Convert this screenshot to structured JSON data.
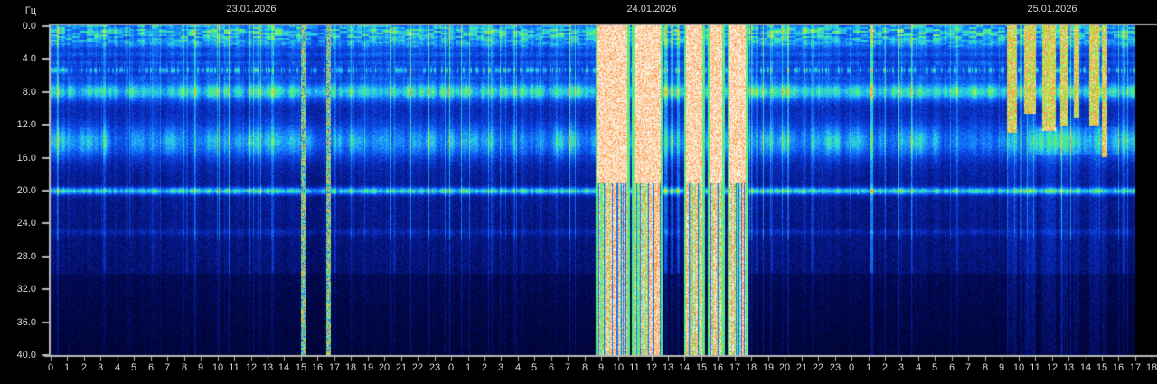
{
  "y_axis": {
    "unit": "Гц",
    "tick_labels": [
      "0.0",
      "4.0",
      "8.0",
      "12.0",
      "16.0",
      "20.0",
      "24.0",
      "28.0",
      "32.0",
      "36.0",
      "40.0"
    ]
  },
  "x_axis": {
    "hour_labels": [
      "0",
      "1",
      "2",
      "3",
      "4",
      "5",
      "6",
      "7",
      "8",
      "9",
      "10",
      "11",
      "12",
      "13",
      "14",
      "15",
      "16",
      "17",
      "18",
      "19",
      "20",
      "21",
      "22",
      "23",
      "0",
      "1",
      "2",
      "3",
      "4",
      "5",
      "6",
      "7",
      "8",
      "9",
      "10",
      "11",
      "12",
      "13",
      "14",
      "15",
      "16",
      "17",
      "18",
      "19",
      "20",
      "21",
      "22",
      "23",
      "0",
      "1",
      "2",
      "3",
      "4",
      "5",
      "6",
      "7",
      "8",
      "9",
      "10",
      "11",
      "12",
      "13",
      "14",
      "15",
      "16",
      "17",
      "18"
    ]
  },
  "dates": [
    "23.01.2026",
    "24.01.2026",
    "25.01.2026"
  ],
  "chart_data": {
    "type": "heatmap",
    "subtype": "ELF spectrogram (Schumann resonances)",
    "ylabel": "Гц",
    "ylim": [
      0,
      40
    ],
    "ytick_step": 4,
    "days": [
      {
        "date": "23.01.2026",
        "first_hour": 0,
        "last_hour": 23
      },
      {
        "date": "24.01.2026",
        "first_hour": 0,
        "last_hour": 23
      },
      {
        "date": "25.01.2026",
        "first_hour": 0,
        "last_hour": 17
      }
    ],
    "grid": false,
    "legend": false,
    "background": "intensity decreases from 0 Hz toward 40 Hz, step darker below 30 Hz",
    "bands": [
      {
        "freq": 0.7,
        "sigma": 1.0,
        "amp": 0.22,
        "style": "streaky",
        "note": "low-frequency dashed activity"
      },
      {
        "freq": 2.1,
        "sigma": 0.35,
        "amp": 0.09,
        "style": "faint"
      },
      {
        "freq": 3.4,
        "sigma": 0.22,
        "amp": 0.08,
        "style": "faint"
      },
      {
        "freq": 4.4,
        "sigma": 0.22,
        "amp": 0.09,
        "style": "faint"
      },
      {
        "freq": 5.3,
        "sigma": 0.28,
        "amp": 0.2,
        "style": "dotted",
        "note": "yellow-green dotted line"
      },
      {
        "freq": 6.2,
        "sigma": 0.22,
        "amp": 0.08,
        "style": "faint"
      },
      {
        "freq": 7.9,
        "sigma": 0.75,
        "amp": 0.3,
        "style": "strong",
        "note": "Schumann fundamental, green"
      },
      {
        "freq": 14.0,
        "sigma": 1.4,
        "amp": 0.25,
        "style": "broad",
        "note": "second mode, cyan"
      },
      {
        "freq": 20.0,
        "sigma": 0.3,
        "amp": 0.36,
        "style": "line",
        "note": "thin bright continuous line"
      },
      {
        "freq": 25.0,
        "sigma": 0.28,
        "amp": 0.07,
        "style": "faint-line"
      }
    ],
    "events": [
      {
        "date": "23.01.2026",
        "start": 15.0,
        "end": 15.25,
        "kind": "speckle-streak"
      },
      {
        "date": "23.01.2026",
        "start": 16.5,
        "end": 16.75,
        "kind": "speckle-streak"
      },
      {
        "date": "24.01.2026",
        "start": 8.7,
        "end": 10.6,
        "kind": "whiteout"
      },
      {
        "date": "24.01.2026",
        "start": 10.9,
        "end": 12.6,
        "kind": "whiteout"
      },
      {
        "date": "24.01.2026",
        "start": 14.0,
        "end": 15.1,
        "kind": "whiteout"
      },
      {
        "date": "24.01.2026",
        "start": 15.4,
        "end": 16.3,
        "kind": "whiteout"
      },
      {
        "date": "24.01.2026",
        "start": 16.6,
        "end": 17.7,
        "kind": "whiteout"
      },
      {
        "date": "25.01.2026",
        "start": 9.3,
        "end": 9.9,
        "kind": "upper-burst"
      },
      {
        "date": "25.01.2026",
        "start": 10.3,
        "end": 11.0,
        "kind": "upper-burst"
      },
      {
        "date": "25.01.2026",
        "start": 11.4,
        "end": 12.2,
        "kind": "upper-burst"
      },
      {
        "date": "25.01.2026",
        "start": 12.5,
        "end": 12.9,
        "kind": "upper-burst"
      },
      {
        "date": "25.01.2026",
        "start": 13.3,
        "end": 13.6,
        "kind": "upper-burst"
      },
      {
        "date": "25.01.2026",
        "start": 14.2,
        "end": 14.8,
        "kind": "upper-burst"
      },
      {
        "date": "25.01.2026",
        "start": 15.0,
        "end": 15.3,
        "kind": "upper-burst"
      }
    ],
    "minor_streaks": [
      {
        "date": "23.01.2026",
        "hour": 3.2,
        "strength": 0.1
      },
      {
        "date": "23.01.2026",
        "hour": 6.1,
        "strength": 0.08
      },
      {
        "date": "23.01.2026",
        "hour": 8.15,
        "strength": 0.12
      },
      {
        "date": "23.01.2026",
        "hour": 10.7,
        "strength": 0.12
      },
      {
        "date": "23.01.2026",
        "hour": 11.9,
        "strength": 0.14
      },
      {
        "date": "23.01.2026",
        "hour": 13.3,
        "strength": 0.16
      },
      {
        "date": "23.01.2026",
        "hour": 17.0,
        "strength": 0.12
      },
      {
        "date": "23.01.2026",
        "hour": 20.6,
        "strength": 0.1
      },
      {
        "date": "24.01.2026",
        "hour": 2.4,
        "strength": 0.1
      },
      {
        "date": "24.01.2026",
        "hour": 6.3,
        "strength": 0.08
      },
      {
        "date": "24.01.2026",
        "hour": 12.85,
        "strength": 0.2
      },
      {
        "date": "24.01.2026",
        "hour": 13.2,
        "strength": 0.16
      },
      {
        "date": "24.01.2026",
        "hour": 13.6,
        "strength": 0.18
      },
      {
        "date": "24.01.2026",
        "hour": 18.3,
        "strength": 0.14
      },
      {
        "date": "24.01.2026",
        "hour": 19.2,
        "strength": 0.1
      },
      {
        "date": "24.01.2026",
        "hour": 21.6,
        "strength": 0.12
      },
      {
        "date": "25.01.2026",
        "hour": 1.2,
        "strength": 0.26
      },
      {
        "date": "25.01.2026",
        "hour": 3.6,
        "strength": 0.1
      },
      {
        "date": "25.01.2026",
        "hour": 6.3,
        "strength": 0.1
      },
      {
        "date": "25.01.2026",
        "hour": 16.3,
        "strength": 0.12
      }
    ],
    "colormap_stops": [
      [
        0.0,
        0,
        0,
        34
      ],
      [
        0.13,
        2,
        10,
        86
      ],
      [
        0.26,
        8,
        34,
        168
      ],
      [
        0.38,
        12,
        74,
        232
      ],
      [
        0.5,
        24,
        140,
        255
      ],
      [
        0.6,
        44,
        214,
        224
      ],
      [
        0.7,
        70,
        238,
        130
      ],
      [
        0.8,
        196,
        240,
        72
      ],
      [
        0.87,
        248,
        190,
        56
      ],
      [
        0.92,
        250,
        130,
        60
      ],
      [
        0.955,
        252,
        222,
        180
      ],
      [
        1.0,
        255,
        255,
        255
      ]
    ],
    "axis_color": "#b8b8b8",
    "label_color": "#d9d9d9"
  }
}
